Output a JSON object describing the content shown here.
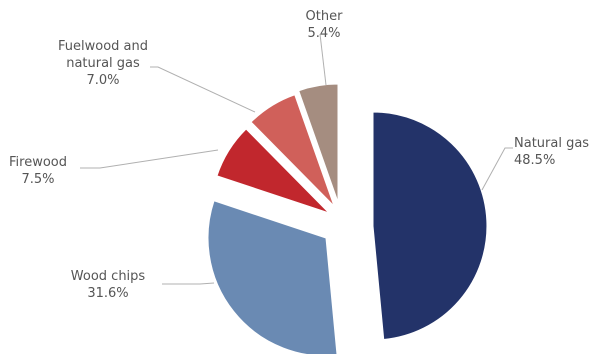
{
  "chart_data": {
    "type": "pie",
    "title": "",
    "slices": [
      {
        "name": "Natural gas",
        "value": 48.5,
        "value_label": "48.5%",
        "color": "#233369"
      },
      {
        "name": "Wood chips",
        "value": 31.6,
        "value_label": "31.6%",
        "color": "#6a8ab3"
      },
      {
        "name": "Firewood",
        "value": 7.5,
        "value_label": "7.5%",
        "color": "#c1272d"
      },
      {
        "name": "Fuelwood and natural gas",
        "name_lines": [
          "Fuelwood and",
          "natural gas"
        ],
        "value": 7.0,
        "value_label": "7.0%",
        "color": "#d0605a"
      },
      {
        "name": "Other",
        "value": 5.4,
        "value_label": "5.4%",
        "color": "#a58d80"
      }
    ],
    "exploded": true,
    "legend": "none"
  }
}
